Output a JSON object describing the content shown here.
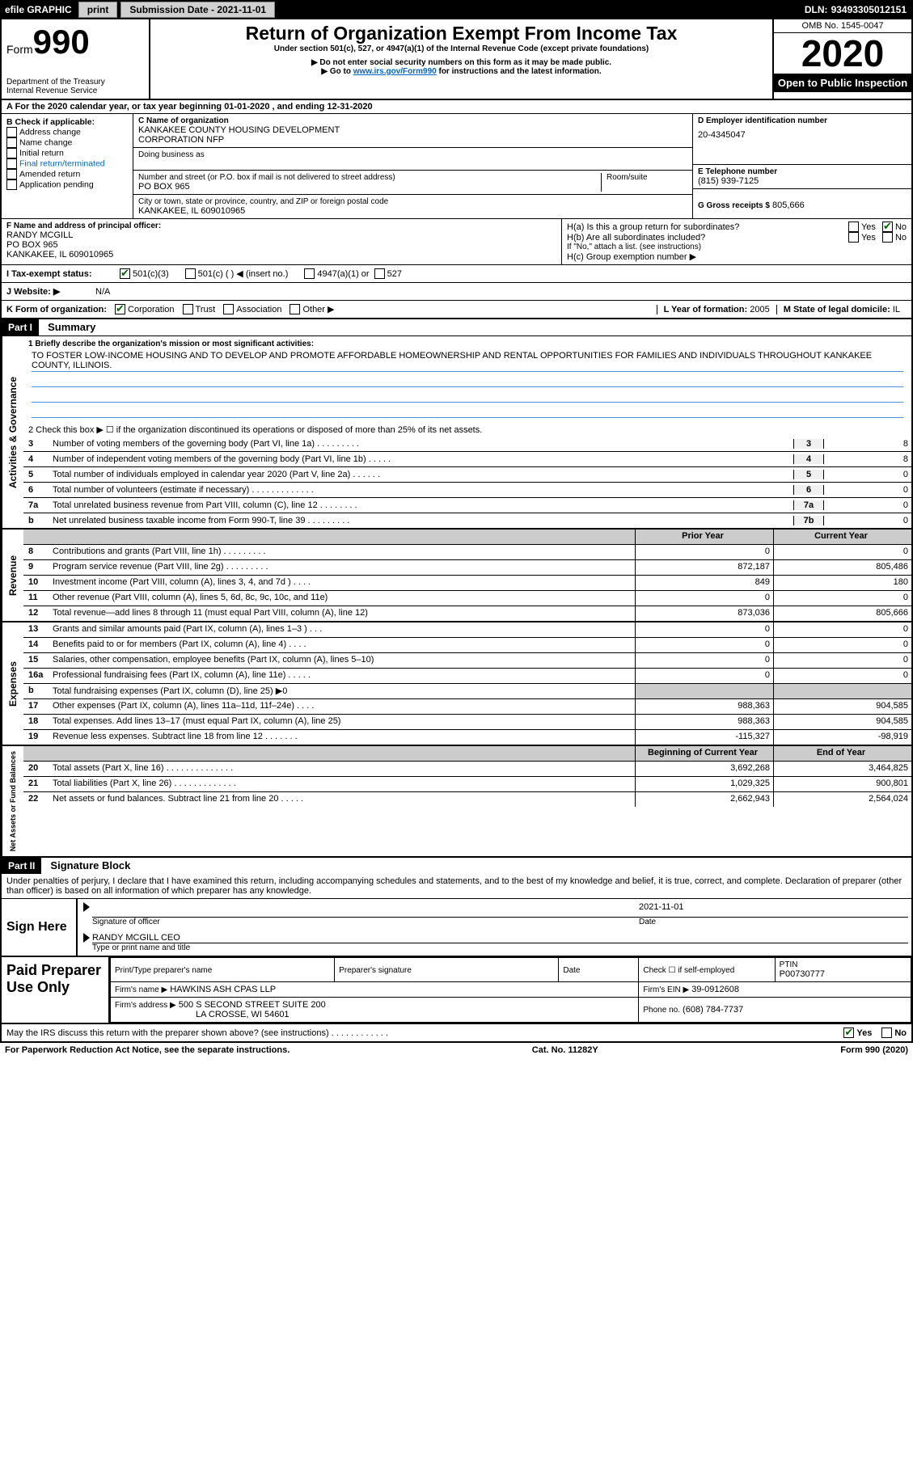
{
  "topbar": {
    "efile": "efile GRAPHIC",
    "print": "print",
    "submission": "Submission Date - 2021-11-01",
    "dln_label": "DLN:",
    "dln": "93493305012151"
  },
  "header": {
    "form": "Form",
    "form_num": "990",
    "dept1": "Department of the Treasury",
    "dept2": "Internal Revenue Service",
    "title": "Return of Organization Exempt From Income Tax",
    "subtitle": "Under section 501(c), 527, or 4947(a)(1) of the Internal Revenue Code (except private foundations)",
    "note1": "▶ Do not enter social security numbers on this form as it may be made public.",
    "note2_pre": "▶ Go to ",
    "note2_link": "www.irs.gov/Form990",
    "note2_post": " for instructions and the latest information.",
    "omb": "OMB No. 1545-0047",
    "year": "2020",
    "open": "Open to Public Inspection"
  },
  "rowA": "A For the 2020 calendar year, or tax year beginning 01-01-2020  , and ending 12-31-2020",
  "boxB": {
    "title": "B Check if applicable:",
    "items": [
      "Address change",
      "Name change",
      "Initial return",
      "Final return/terminated",
      "Amended return",
      "Application pending"
    ]
  },
  "boxC": {
    "label": "C Name of organization",
    "name1": "KANKAKEE COUNTY HOUSING DEVELOPMENT",
    "name2": "CORPORATION NFP",
    "dba_label": "Doing business as",
    "addr_label": "Number and street (or P.O. box if mail is not delivered to street address)",
    "room_label": "Room/suite",
    "addr": "PO BOX 965",
    "city_label": "City or town, state or province, country, and ZIP or foreign postal code",
    "city": "KANKAKEE, IL  609010965"
  },
  "boxD": {
    "label": "D Employer identification number",
    "ein": "20-4345047"
  },
  "boxE": {
    "label": "E Telephone number",
    "phone": "(815) 939-7125"
  },
  "boxG": {
    "label": "G Gross receipts $",
    "amount": "805,666"
  },
  "boxF": {
    "label": "F Name and address of principal officer:",
    "name": "RANDY MCGILL",
    "addr1": "PO BOX 965",
    "addr2": "KANKAKEE, IL  609010965"
  },
  "boxH": {
    "ha": "H(a)  Is this a group return for subordinates?",
    "hb": "H(b)  Are all subordinates included?",
    "hb_note": "If \"No,\" attach a list. (see instructions)",
    "hc": "H(c)  Group exemption number ▶",
    "yes": "Yes",
    "no": "No"
  },
  "rowI": {
    "label": "I  Tax-exempt status:",
    "o1": "501(c)(3)",
    "o2": "501(c) (  ) ◀ (insert no.)",
    "o3": "4947(a)(1) or",
    "o4": "527"
  },
  "rowJ": {
    "label": "J  Website: ▶",
    "val": "N/A"
  },
  "rowK": {
    "label": "K Form of organization:",
    "o1": "Corporation",
    "o2": "Trust",
    "o3": "Association",
    "o4": "Other ▶"
  },
  "rowL": {
    "label": "L Year of formation:",
    "val": "2005"
  },
  "rowM": {
    "label": "M State of legal domicile:",
    "val": "IL"
  },
  "part1": {
    "header": "Part I",
    "title": "Summary",
    "line1_label": "1   Briefly describe the organization's mission or most significant activities:",
    "mission": "TO FOSTER LOW-INCOME HOUSING AND TO DEVELOP AND PROMOTE AFFORDABLE HOMEOWNERSHIP AND RENTAL OPPORTUNITIES FOR FAMILIES AND INDIVIDUALS THROUGHOUT KANKAKEE COUNTY, ILLINOIS.",
    "line2": "2   Check this box ▶ ☐  if the organization discontinued its operations or disposed of more than 25% of its net assets.",
    "gov_lines": [
      {
        "n": "3",
        "t": "Number of voting members of the governing body (Part VI, line 1a)  .  .  .  .  .  .  .  .  .",
        "c": "3",
        "v": "8"
      },
      {
        "n": "4",
        "t": "Number of independent voting members of the governing body (Part VI, line 1b)  .  .  .  .  .",
        "c": "4",
        "v": "8"
      },
      {
        "n": "5",
        "t": "Total number of individuals employed in calendar year 2020 (Part V, line 2a)  .  .  .  .  .  .",
        "c": "5",
        "v": "0"
      },
      {
        "n": "6",
        "t": "Total number of volunteers (estimate if necessary)  .  .  .  .  .  .  .  .  .  .  .  .  .",
        "c": "6",
        "v": "0"
      },
      {
        "n": "7a",
        "t": "Total unrelated business revenue from Part VIII, column (C), line 12  .  .  .  .  .  .  .  .",
        "c": "7a",
        "v": "0"
      },
      {
        "n": "b",
        "t": "Net unrelated business taxable income from Form 990-T, line 39  .  .  .  .  .  .  .  .  .",
        "c": "7b",
        "v": "0"
      }
    ],
    "prior_year": "Prior Year",
    "current_year": "Current Year",
    "boy": "Beginning of Current Year",
    "eoy": "End of Year",
    "revenue": [
      {
        "n": "8",
        "t": "Contributions and grants (Part VIII, line 1h)  .  .  .  .  .  .  .  .  .",
        "v1": "0",
        "v2": "0"
      },
      {
        "n": "9",
        "t": "Program service revenue (Part VIII, line 2g)  .  .  .  .  .  .  .  .  .",
        "v1": "872,187",
        "v2": "805,486"
      },
      {
        "n": "10",
        "t": "Investment income (Part VIII, column (A), lines 3, 4, and 7d )  .  .  .  .",
        "v1": "849",
        "v2": "180"
      },
      {
        "n": "11",
        "t": "Other revenue (Part VIII, column (A), lines 5, 6d, 8c, 9c, 10c, and 11e)",
        "v1": "0",
        "v2": "0"
      },
      {
        "n": "12",
        "t": "Total revenue—add lines 8 through 11 (must equal Part VIII, column (A), line 12)",
        "v1": "873,036",
        "v2": "805,666"
      }
    ],
    "expenses": [
      {
        "n": "13",
        "t": "Grants and similar amounts paid (Part IX, column (A), lines 1–3 )  .  .  .",
        "v1": "0",
        "v2": "0"
      },
      {
        "n": "14",
        "t": "Benefits paid to or for members (Part IX, column (A), line 4)  .  .  .  .",
        "v1": "0",
        "v2": "0"
      },
      {
        "n": "15",
        "t": "Salaries, other compensation, employee benefits (Part IX, column (A), lines 5–10)",
        "v1": "0",
        "v2": "0"
      },
      {
        "n": "16a",
        "t": "Professional fundraising fees (Part IX, column (A), line 11e)  .  .  .  .  .",
        "v1": "0",
        "v2": "0"
      },
      {
        "n": "b",
        "t": "Total fundraising expenses (Part IX, column (D), line 25) ▶0",
        "v1": "",
        "v2": "",
        "shaded": true
      },
      {
        "n": "17",
        "t": "Other expenses (Part IX, column (A), lines 11a–11d, 11f–24e)  .  .  .  .",
        "v1": "988,363",
        "v2": "904,585"
      },
      {
        "n": "18",
        "t": "Total expenses. Add lines 13–17 (must equal Part IX, column (A), line 25)",
        "v1": "988,363",
        "v2": "904,585"
      },
      {
        "n": "19",
        "t": "Revenue less expenses. Subtract line 18 from line 12  .  .  .  .  .  .  .",
        "v1": "-115,327",
        "v2": "-98,919"
      }
    ],
    "netassets": [
      {
        "n": "20",
        "t": "Total assets (Part X, line 16)  .  .  .  .  .  .  .  .  .  .  .  .  .  .",
        "v1": "3,692,268",
        "v2": "3,464,825"
      },
      {
        "n": "21",
        "t": "Total liabilities (Part X, line 26)  .  .  .  .  .  .  .  .  .  .  .  .  .",
        "v1": "1,029,325",
        "v2": "900,801"
      },
      {
        "n": "22",
        "t": "Net assets or fund balances. Subtract line 21 from line 20  .  .  .  .  .",
        "v1": "2,662,943",
        "v2": "2,564,024"
      }
    ],
    "side_gov": "Activities & Governance",
    "side_rev": "Revenue",
    "side_exp": "Expenses",
    "side_net": "Net Assets or Fund Balances"
  },
  "part2": {
    "header": "Part II",
    "title": "Signature Block",
    "declaration": "Under penalties of perjury, I declare that I have examined this return, including accompanying schedules and statements, and to the best of my knowledge and belief, it is true, correct, and complete. Declaration of preparer (other than officer) is based on all information of which preparer has any knowledge.",
    "sign_here": "Sign Here",
    "sig_line1_l": "Signature of officer",
    "sig_line1_r": "Date",
    "sig_date": "2021-11-01",
    "sig_name": "RANDY MCGILL CEO",
    "sig_line2": "Type or print name and title",
    "paid": "Paid Preparer Use Only",
    "h1": "Print/Type preparer's name",
    "h2": "Preparer's signature",
    "h3": "Date",
    "h4_a": "Check ☐ if self-employed",
    "h4_b": "PTIN",
    "ptin": "P00730777",
    "firm_name_l": "Firm's name    ▶",
    "firm_name": "HAWKINS ASH CPAS LLP",
    "firm_ein_l": "Firm's EIN ▶",
    "firm_ein": "39-0912608",
    "firm_addr_l": "Firm's address ▶",
    "firm_addr1": "500 S SECOND STREET SUITE 200",
    "firm_addr2": "LA CROSSE, WI  54601",
    "phone_l": "Phone no.",
    "phone": "(608) 784-7737",
    "discuss": "May the IRS discuss this return with the preparer shown above? (see instructions)  .  .  .  .  .  .  .  .  .  .  .  .",
    "yes": "Yes",
    "no": "No"
  },
  "footer": {
    "left": "For Paperwork Reduction Act Notice, see the separate instructions.",
    "mid": "Cat. No. 11282Y",
    "right": "Form 990 (2020)"
  }
}
